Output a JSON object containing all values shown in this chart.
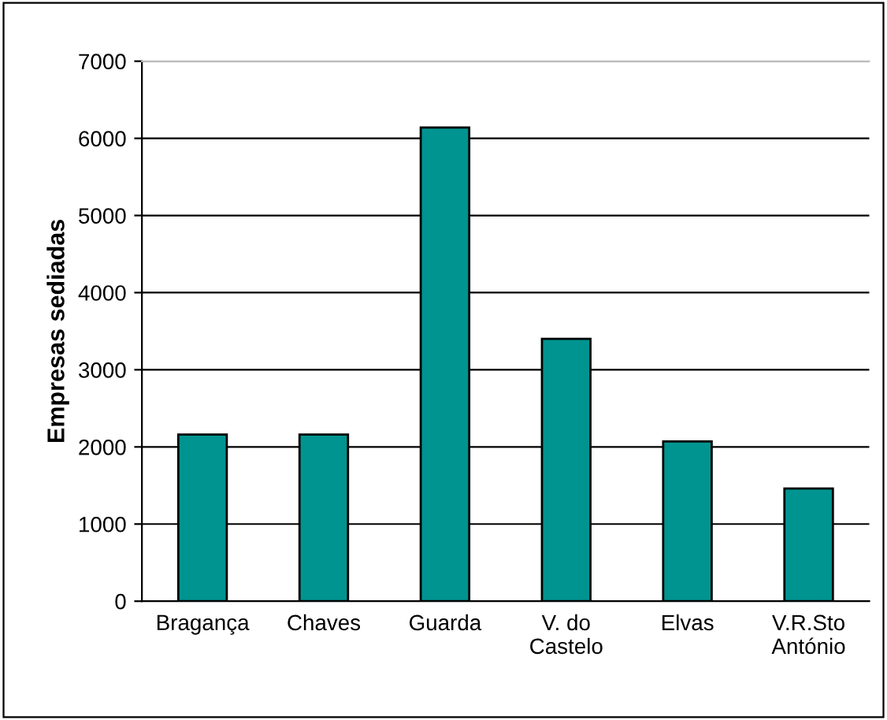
{
  "chart_data": {
    "type": "bar",
    "ylabel": "Empresas sediadas",
    "categories": [
      "Bragança",
      "Chaves",
      "Guarda",
      "V. do\nCastelo",
      "Elvas",
      "V.R.Sto\nAntónio"
    ],
    "values": [
      2160,
      2160,
      6140,
      3400,
      2070,
      1460
    ],
    "color": "#009490",
    "ylim": [
      0,
      7000
    ],
    "yticks": [
      0,
      1000,
      2000,
      3000,
      4000,
      5000,
      6000,
      7000
    ],
    "grid": "y"
  }
}
